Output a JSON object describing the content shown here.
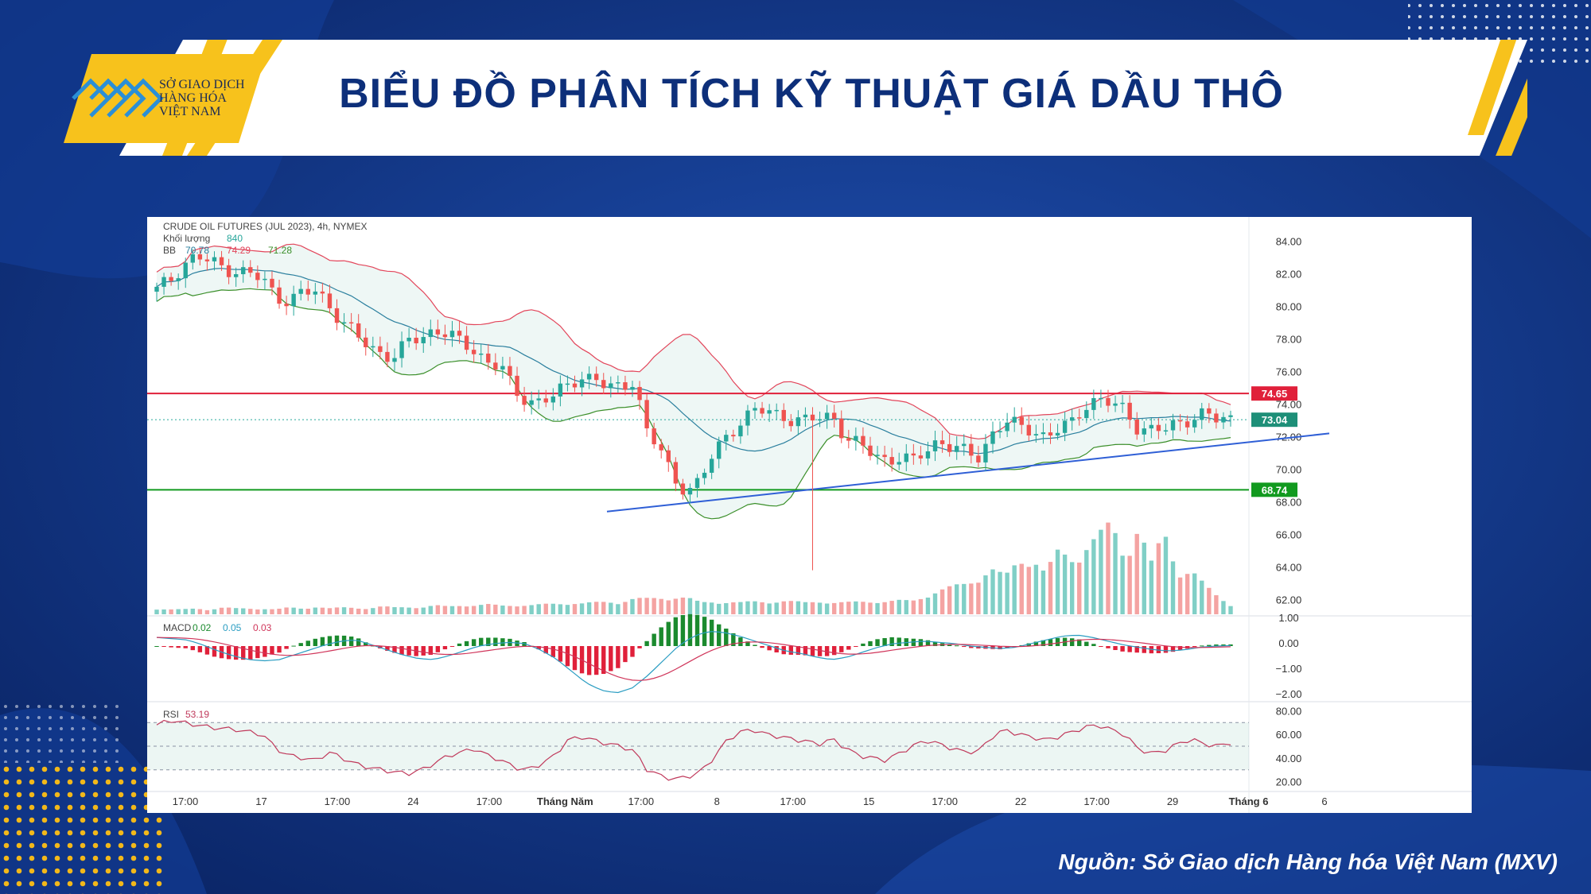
{
  "header": {
    "logo_lines": [
      "SỞ GIAO DỊCH",
      "HÀNG HÓA",
      "VIỆT NAM"
    ],
    "title": "BIỂU ĐỒ PHÂN TÍCH KỸ THUẬT GIÁ DẦU THÔ"
  },
  "footer": {
    "source": "Nguồn: Sở Giao dịch Hàng hóa Việt Nam (MXV)"
  },
  "colors": {
    "background": "#0d2f7a",
    "accent_yellow": "#f7c21c",
    "up": "#26a69a",
    "down": "#ef5350"
  },
  "chart_data": {
    "type": "candlestick",
    "title": "CRUDE OIL FUTURES (JUL 2023), 4h, NYMEX",
    "volume_label": "Khối lượng",
    "volume_value": "840",
    "bb_label": "BB",
    "bb_values": [
      "70.78",
      "74.29",
      "71.28"
    ],
    "macd_label": "MACD",
    "macd_values": [
      "0.02",
      "0.05",
      "0.03"
    ],
    "rsi_label": "RSI",
    "rsi_value": "53.19",
    "price_axis": {
      "min": 61,
      "max": 85,
      "ticks": [
        "84.00",
        "82.00",
        "80.00",
        "78.00",
        "76.00",
        "74.00",
        "72.00",
        "70.00",
        "68.00",
        "66.00",
        "64.00",
        "62.00"
      ]
    },
    "macd_axis": {
      "ticks": [
        "1.00",
        "0.00",
        "−1.00",
        "−2.00"
      ]
    },
    "rsi_axis": {
      "ticks": [
        "80.00",
        "60.00",
        "40.00",
        "20.00"
      ]
    },
    "x_ticks": [
      "17:00",
      "17",
      "17:00",
      "24",
      "17:00",
      "Tháng Năm",
      "17:00",
      "8",
      "17:00",
      "15",
      "17:00",
      "22",
      "17:00",
      "29",
      "Tháng 6",
      "6"
    ],
    "resistance": {
      "value": 74.65,
      "label": "74.65"
    },
    "support": {
      "value": 68.74,
      "label": "68.74"
    },
    "last_price": {
      "value": 73.04,
      "label": "73.04"
    },
    "trendline": {
      "start_price": 67.4,
      "end_price": 72.2
    },
    "close_path": [
      81.0,
      81.6,
      82.6,
      83.1,
      82.7,
      82.4,
      82.2,
      82.0,
      81.6,
      80.6,
      80.4,
      80.8,
      80.9,
      80.1,
      79.1,
      78.2,
      77.5,
      77.1,
      77.0,
      77.8,
      78.1,
      78.6,
      78.4,
      77.6,
      77.3,
      76.6,
      76.4,
      74.5,
      74.3,
      74.2,
      74.6,
      75.0,
      75.8,
      75.6,
      75.0,
      74.9,
      75.6,
      72.2,
      71.2,
      69.2,
      68.9,
      69.2,
      71.0,
      72.0,
      73.0,
      73.5,
      73.6,
      73.3,
      73.1,
      72.9,
      73.2,
      73.3,
      71.9,
      71.4,
      71.0,
      70.6,
      70.7,
      70.4,
      71.2,
      71.8,
      71.3,
      71.0,
      70.8,
      72.2,
      72.9,
      72.6,
      72.5,
      72.0,
      72.4,
      72.8,
      74.0,
      74.3,
      74.0,
      73.6,
      72.6,
      72.4,
      72.4,
      72.8,
      73.2,
      73.4,
      73.0,
      73.1
    ],
    "volume_path": [
      0.06,
      0.05,
      0.05,
      0.06,
      0.05,
      0.07,
      0.06,
      0.06,
      0.06,
      0.05,
      0.07,
      0.06,
      0.08,
      0.06,
      0.07,
      0.07,
      0.06,
      0.08,
      0.07,
      0.08,
      0.07,
      0.09,
      0.08,
      0.1,
      0.09,
      0.1,
      0.09,
      0.1,
      0.09,
      0.1,
      0.11,
      0.12,
      0.11,
      0.12,
      0.13,
      0.13,
      0.16,
      0.16,
      0.17,
      0.18,
      0.17,
      0.12,
      0.13,
      0.13,
      0.12,
      0.13,
      0.13,
      0.14,
      0.13,
      0.12,
      0.14,
      0.12,
      0.12,
      0.13,
      0.14,
      0.13,
      0.14,
      0.14,
      0.2,
      0.24,
      0.28,
      0.32,
      0.4,
      0.46,
      0.38,
      0.56,
      0.62,
      0.42,
      0.64,
      0.58,
      0.72,
      0.8,
      0.92,
      0.6,
      0.95,
      0.52,
      0.82,
      0.45,
      0.48,
      0.3,
      0.18,
      0.1
    ],
    "macd_path": [
      0.35,
      0.3,
      0.25,
      0.05,
      -0.2,
      -0.4,
      -0.55,
      -0.6,
      -0.55,
      -0.35,
      -0.15,
      0.05,
      0.2,
      0.25,
      0.05,
      -0.15,
      -0.35,
      -0.5,
      -0.55,
      -0.4,
      -0.2,
      0.0,
      0.1,
      0.15,
      0.1,
      -0.15,
      -0.5,
      -1.0,
      -1.5,
      -1.8,
      -1.9,
      -1.7,
      -1.2,
      -0.6,
      0.0,
      0.4,
      0.6,
      0.55,
      0.4,
      0.2,
      0.0,
      -0.2,
      -0.3,
      -0.45,
      -0.55,
      -0.45,
      -0.25,
      -0.05,
      0.1,
      0.15,
      0.2,
      0.15,
      0.1,
      0.0,
      -0.05,
      -0.1,
      -0.05,
      0.1,
      0.25,
      0.4,
      0.45,
      0.35,
      0.2,
      0.05,
      -0.05,
      -0.15,
      -0.2,
      -0.15,
      -0.05,
      0.0,
      0.02
    ],
    "rsi_path": [
      68,
      72,
      70,
      68,
      66,
      65,
      64,
      62,
      60,
      48,
      42,
      40,
      38,
      45,
      40,
      35,
      32,
      30,
      28,
      27,
      30,
      36,
      42,
      45,
      48,
      42,
      38,
      32,
      30,
      35,
      42,
      55,
      58,
      55,
      52,
      50,
      46,
      30,
      25,
      22,
      24,
      28,
      40,
      55,
      62,
      64,
      60,
      58,
      56,
      54,
      52,
      56,
      48,
      42,
      40,
      38,
      44,
      50,
      55,
      52,
      48,
      45,
      46,
      58,
      64,
      60,
      58,
      55,
      58,
      62,
      66,
      68,
      64,
      60,
      48,
      44,
      46,
      52,
      56,
      52,
      50,
      53
    ]
  }
}
